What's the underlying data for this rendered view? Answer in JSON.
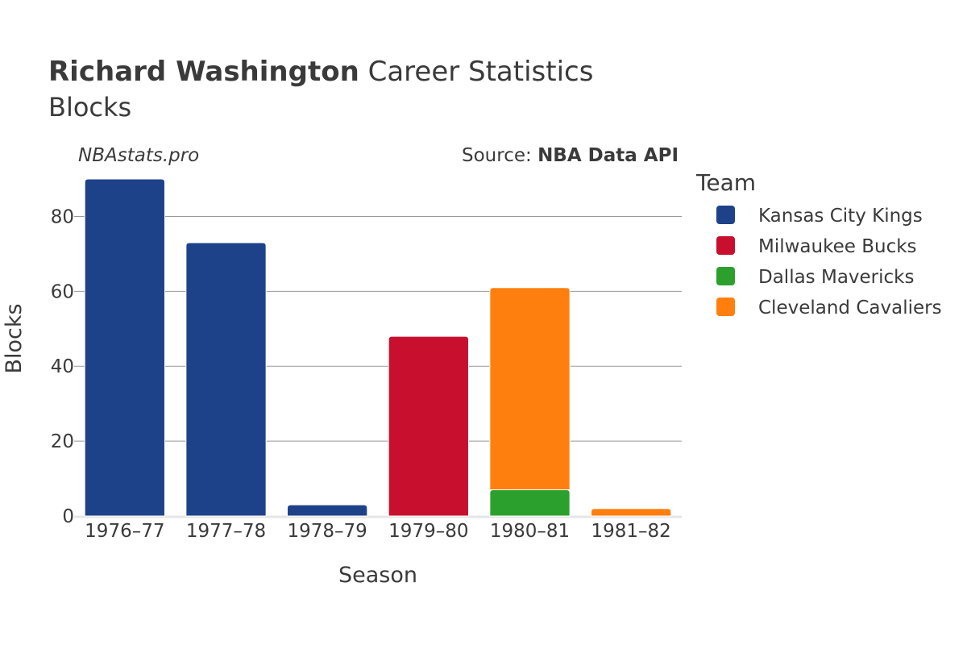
{
  "header": {
    "player": "Richard Washington",
    "title_rest": " Career Statistics",
    "subtitle": "Blocks"
  },
  "watermark": "NBAstats.pro",
  "source": {
    "prefix": "Source: ",
    "name": "NBA Data API"
  },
  "colors": {
    "Kansas City Kings": "#1d428a",
    "Milwaukee Bucks": "#c8102e",
    "Dallas Mavericks": "#2ca02c",
    "Cleveland Cavaliers": "#ff7f0e",
    "grid": "#999999",
    "text": "#3a3a3a"
  },
  "chart_data": {
    "type": "bar",
    "stacked": true,
    "title": "Richard Washington Career Statistics",
    "subtitle": "Blocks",
    "xlabel": "Season",
    "ylabel": "Blocks",
    "categories": [
      "1976–77",
      "1977–78",
      "1978–79",
      "1979–80",
      "1980–81",
      "1981–82"
    ],
    "ylim": [
      0,
      90
    ],
    "yticks": [
      0,
      20,
      40,
      60,
      80
    ],
    "grid": true,
    "legend_title": "Team",
    "legend_position": "right",
    "series": [
      {
        "name": "Kansas City Kings",
        "values": [
          90,
          73,
          3,
          0,
          0,
          0
        ]
      },
      {
        "name": "Milwaukee Bucks",
        "values": [
          0,
          0,
          0,
          48,
          0,
          0
        ]
      },
      {
        "name": "Dallas Mavericks",
        "values": [
          0,
          0,
          0,
          0,
          7,
          0
        ]
      },
      {
        "name": "Cleveland Cavaliers",
        "values": [
          0,
          0,
          0,
          0,
          54,
          2
        ]
      }
    ]
  }
}
